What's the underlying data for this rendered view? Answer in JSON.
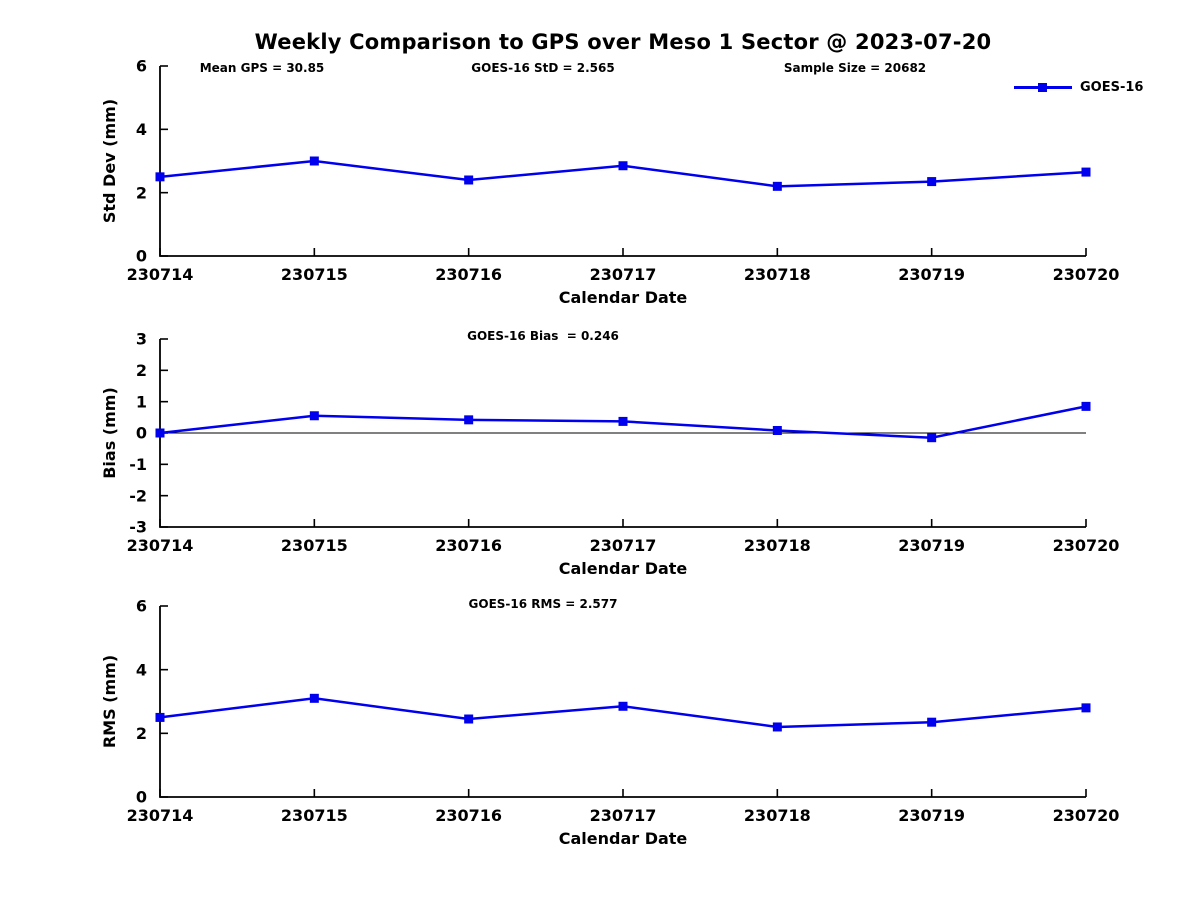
{
  "title": "Weekly Comparison to GPS over Meso 1 Sector @ 2023-07-20",
  "legend": {
    "label": "GOES-16",
    "line_color": "#0000EE",
    "marker": "square",
    "position": "top-right"
  },
  "chart_data": [
    {
      "type": "line",
      "name": "std-dev",
      "ylabel": "Std Dev (mm)",
      "xlabel": "Calendar Date",
      "annotations": [
        {
          "text": "Mean GPS = 30.85"
        },
        {
          "text": "GOES-16 StD = 2.565"
        },
        {
          "text": "Sample Size = 20682"
        }
      ],
      "categories": [
        "230714",
        "230715",
        "230716",
        "230717",
        "230718",
        "230719",
        "230720"
      ],
      "series": [
        {
          "name": "GOES-16",
          "color": "#0000EE",
          "marker": "square",
          "values": [
            2.5,
            3.0,
            2.4,
            2.85,
            2.2,
            2.35,
            2.65
          ]
        }
      ],
      "ylim": [
        0,
        6
      ],
      "yticks": [
        0,
        2,
        4,
        6
      ],
      "zero_line": false,
      "grid": false
    },
    {
      "type": "line",
      "name": "bias",
      "ylabel": "Bias (mm)",
      "xlabel": "Calendar Date",
      "annotations": [
        {
          "text": "GOES-16 Bias  = 0.246"
        }
      ],
      "categories": [
        "230714",
        "230715",
        "230716",
        "230717",
        "230718",
        "230719",
        "230720"
      ],
      "series": [
        {
          "name": "GOES-16",
          "color": "#0000EE",
          "marker": "square",
          "values": [
            0.0,
            0.55,
            0.42,
            0.37,
            0.08,
            -0.15,
            0.85
          ]
        }
      ],
      "ylim": [
        -3,
        3
      ],
      "yticks": [
        3,
        2,
        1,
        0,
        -1,
        -2,
        -3
      ],
      "zero_line": true,
      "grid": false
    },
    {
      "type": "line",
      "name": "rms",
      "ylabel": "RMS (mm)",
      "xlabel": "Calendar Date",
      "annotations": [
        {
          "text": "GOES-16 RMS = 2.577"
        }
      ],
      "categories": [
        "230714",
        "230715",
        "230716",
        "230717",
        "230718",
        "230719",
        "230720"
      ],
      "series": [
        {
          "name": "GOES-16",
          "color": "#0000EE",
          "marker": "square",
          "values": [
            2.5,
            3.1,
            2.45,
            2.85,
            2.2,
            2.35,
            2.8
          ]
        }
      ],
      "ylim": [
        0,
        6
      ],
      "yticks": [
        0,
        2,
        4,
        6
      ],
      "zero_line": false,
      "grid": false
    }
  ]
}
